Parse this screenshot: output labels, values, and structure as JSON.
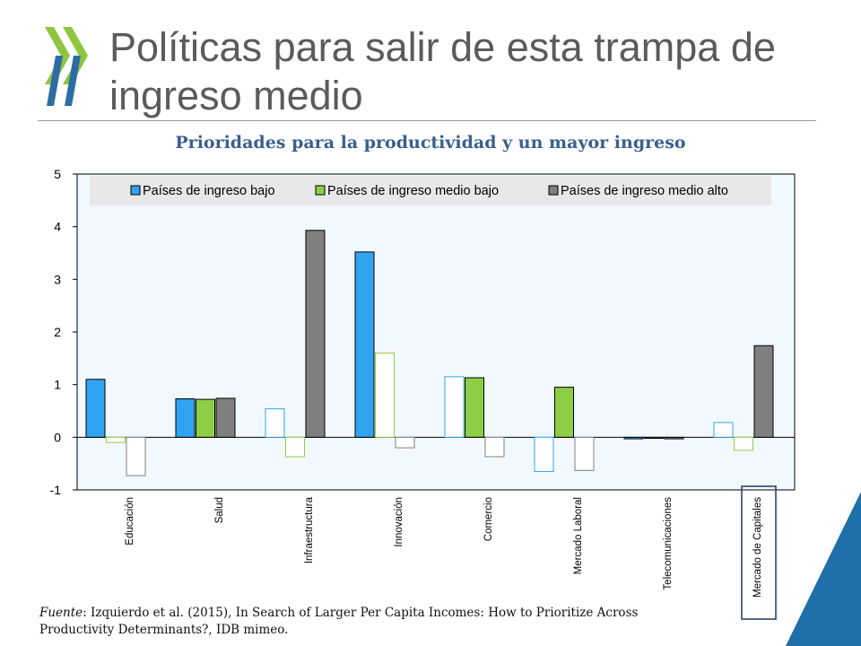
{
  "slide": {
    "title": "Políticas para salir de esta trampa de ingreso medio",
    "subtitle": "Prioridades para la productividad y un mayor  ingreso",
    "source_label": "Fuente",
    "source_text": ": Izquierdo et al. (2015), In Search of Larger Per Capita Incomes: How to Prioritize Across Productivity Determinants?, IDB mimeo."
  },
  "colors": {
    "title": "#5b5b5b",
    "subtitle": "#3a5f8f",
    "logo_green": "#8dc63f",
    "logo_blue": "#2e6da4",
    "corner_blue": "#1f6fa8",
    "plot_bg": "#f2f9fe",
    "legend_bg": "#e8e8e8"
  },
  "chart_data": {
    "type": "bar",
    "categories": [
      "Educación",
      "Salud",
      "Infraestructura",
      "Innovación",
      "Comercio",
      "Mercado Laboral",
      "Telecomunicaciones",
      "Mercado de Capitales"
    ],
    "highlighted_category": "Mercado de Capitales",
    "series": [
      {
        "name": "Países de ingreso bajo",
        "color": "#2fa3f0",
        "values": [
          1.1,
          0.73,
          0.54,
          3.52,
          1.15,
          -0.65,
          -0.03,
          0.28
        ]
      },
      {
        "name": "Países de ingreso medio bajo",
        "color": "#8ccf45",
        "values": [
          -0.1,
          0.72,
          -0.37,
          1.6,
          1.13,
          0.95,
          -0.02,
          -0.25
        ]
      },
      {
        "name": "Países de ingreso medio alto",
        "color": "#7f7f7f",
        "values": [
          -0.73,
          0.74,
          3.93,
          -0.2,
          -0.37,
          -0.63,
          -0.03,
          1.74
        ]
      }
    ],
    "filled_when_positive": [
      true,
      true,
      true,
      true,
      false,
      true,
      false,
      true
    ],
    "filled_rule": "solid bars for the most important priority cells, outlined bars otherwise",
    "filled": [
      [
        true,
        true,
        false,
        true,
        false,
        false,
        true,
        false
      ],
      [
        false,
        true,
        false,
        false,
        true,
        true,
        true,
        false
      ],
      [
        false,
        true,
        true,
        false,
        false,
        false,
        true,
        true
      ]
    ],
    "yticks": [
      "-1",
      "0",
      "1",
      "2",
      "3",
      "4",
      "5"
    ],
    "ylim": [
      -1,
      5
    ],
    "legend_position": "top",
    "grid": false
  }
}
